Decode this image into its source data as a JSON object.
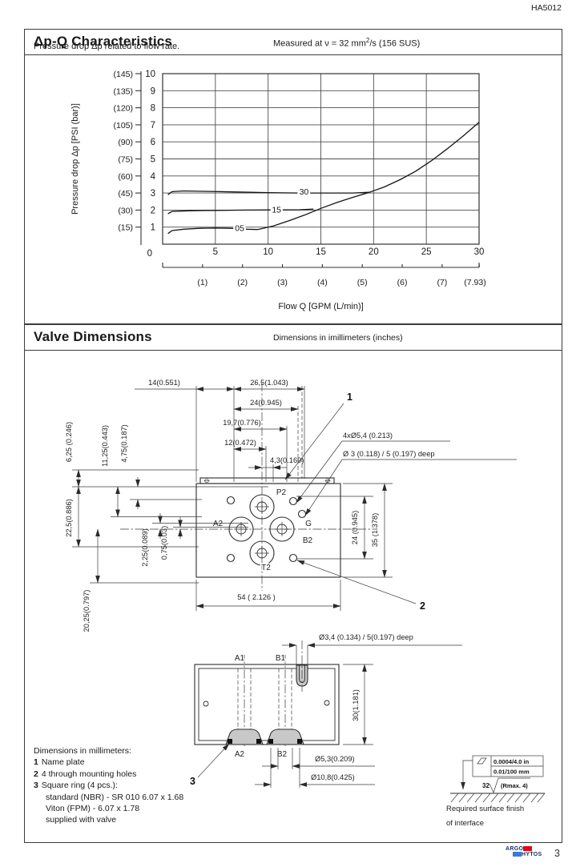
{
  "page": {
    "doc_code": "HA5012",
    "page_number": "3",
    "logo": {
      "line1": "ARGO",
      "line2": "HYTOS"
    }
  },
  "section1": {
    "title": "Δp-Q Characteristics",
    "meta_pre": "Measured at  ν = 32 mm",
    "meta_sup": "2",
    "meta_post": "/s (156 SUS)"
  },
  "chart_data": {
    "type": "line",
    "title": "Pressure drop Δp related to flow rate.",
    "xlabel": "Flow Q [GPM (L/min)]",
    "ylabel": "Pressure drop Δp [PSI (bar)]",
    "xlim": [
      0,
      30
    ],
    "ylim": [
      0,
      10
    ],
    "grid": true,
    "x_origin_label": "0",
    "x_ticks_lmin": [
      5,
      10,
      15,
      20,
      25,
      30
    ],
    "x_ticks_gpm": [
      {
        "value": 1,
        "label": "(1)"
      },
      {
        "value": 2,
        "label": "(2)"
      },
      {
        "value": 3,
        "label": "(3)"
      },
      {
        "value": 4,
        "label": "(4)"
      },
      {
        "value": 5,
        "label": "(5)"
      },
      {
        "value": 6,
        "label": "(6)"
      },
      {
        "value": 7,
        "label": "(7)"
      },
      {
        "value": 7.93,
        "label": "(7.93)"
      }
    ],
    "y_ticks": [
      {
        "bar": "1",
        "psi": "(15)"
      },
      {
        "bar": "2",
        "psi": "(30)"
      },
      {
        "bar": "3",
        "psi": "(45)"
      },
      {
        "bar": "4",
        "psi": "(60)"
      },
      {
        "bar": "5",
        "psi": "(75)"
      },
      {
        "bar": "6",
        "psi": "(90)"
      },
      {
        "bar": "7",
        "psi": "(105)"
      },
      {
        "bar": "8",
        "psi": "(120)"
      },
      {
        "bar": "9",
        "psi": "(135)"
      },
      {
        "bar": "10",
        "psi": "(145)"
      }
    ],
    "series": [
      {
        "name": "spool-05",
        "label": "05",
        "label_at": [
          7.3,
          0.95
        ],
        "points": [
          [
            0.5,
            0.62
          ],
          [
            0.9,
            0.8
          ],
          [
            2,
            0.88
          ],
          [
            3.5,
            0.93
          ],
          [
            5,
            0.95
          ],
          [
            6.5,
            0.93
          ],
          [
            8,
            0.88
          ],
          [
            9,
            0.86
          ]
        ]
      },
      {
        "name": "spool-15",
        "label": "15",
        "label_at": [
          10.8,
          2.02
        ],
        "points": [
          [
            0.5,
            1.78
          ],
          [
            0.9,
            1.92
          ],
          [
            2.5,
            1.96
          ],
          [
            5,
            1.98
          ],
          [
            8,
            2.0
          ],
          [
            11,
            2.01
          ],
          [
            13,
            2.02
          ],
          [
            14.3,
            2.06
          ]
        ]
      },
      {
        "name": "spool-30",
        "label": "30",
        "label_at": [
          13.4,
          3.08
        ],
        "points": [
          [
            0.5,
            2.9
          ],
          [
            0.9,
            3.08
          ],
          [
            2,
            3.12
          ],
          [
            4,
            3.1
          ],
          [
            7,
            3.06
          ],
          [
            10,
            3.02
          ],
          [
            13,
            3.0
          ],
          [
            16,
            3.0
          ],
          [
            18,
            3.0
          ],
          [
            19.6,
            3.04
          ]
        ]
      },
      {
        "name": "flow-limit",
        "label": "",
        "label_at": null,
        "points": [
          [
            9,
            0.86
          ],
          [
            10.5,
            1.07
          ],
          [
            12,
            1.38
          ],
          [
            13.5,
            1.72
          ],
          [
            15,
            2.1
          ],
          [
            16.5,
            2.44
          ],
          [
            18,
            2.74
          ],
          [
            19.6,
            3.04
          ],
          [
            21,
            3.35
          ],
          [
            22.5,
            3.78
          ],
          [
            24,
            4.28
          ],
          [
            25.5,
            4.9
          ],
          [
            27,
            5.6
          ],
          [
            28.5,
            6.35
          ],
          [
            30,
            7.15
          ]
        ]
      }
    ]
  },
  "section2": {
    "title": "Valve Dimensions",
    "meta": "Dimensions in imillimeters (inches)"
  },
  "drawing": {
    "top_view": {
      "d14": "14(0.551)",
      "d26_5": "26,5(1.043)",
      "d24": "24(0.945)",
      "d19_7": "19,7(0.776)",
      "d12": "12(0.472)",
      "d4_3": "4,3(0.169)",
      "note_mount": "4xØ5,4 (0.213)",
      "note_gauge": "Ø 3 (0.118) / 5 (0.197) deep",
      "d6_25": "6,25 (0.246)",
      "d11_25": "11,25(0.443)",
      "d4_75": "4,75(0.187)",
      "d22_5": "22,5(0.886)",
      "d2_25": "2,25(0.089)",
      "d0_75": "0,75(0.03)",
      "d20_25": "20,25(0.797)",
      "d24_right": "24 (0.945)",
      "d35": "35 (1.378)",
      "d54": "54 ( 2.126 )",
      "port_p2": "P2",
      "port_a2": "A2",
      "port_b2": "B2",
      "port_t2": "T2",
      "port_g": "G",
      "callout_1": "1",
      "callout_2": "2"
    },
    "front_view": {
      "note_slot": "Ø3,4 (0.134) / 5(0.197) deep",
      "d30": "30(1.181)",
      "port_a1": "A1",
      "port_b1": "B1",
      "port_a2": "A2",
      "port_b2": "B2",
      "d5_3": "Ø5,3(0.209)",
      "d10_8": "Ø10,8(0.425)",
      "callout_3": "3"
    },
    "notes": {
      "title": "Dimensions in millimeters:",
      "items": [
        {
          "num": "1",
          "text": "Name plate"
        },
        {
          "num": "2",
          "text": "4 through mounting holes"
        },
        {
          "num": "3",
          "text": "Square ring (4 pcs.):"
        }
      ],
      "cont": [
        "standard (NBR) - SR 010 6.07 x 1.68",
        "Viton (FPM) - 6.07 x 1.78",
        "supplied with valve"
      ]
    },
    "finish": {
      "flatness_in": "0.0004/4.0 in",
      "flatness_mm": "0.01/100 mm",
      "roughness_value": "32",
      "roughness_note": "(Rmax. 4)",
      "caption_line1": "Required surface finish",
      "caption_line2": "of interface"
    }
  }
}
